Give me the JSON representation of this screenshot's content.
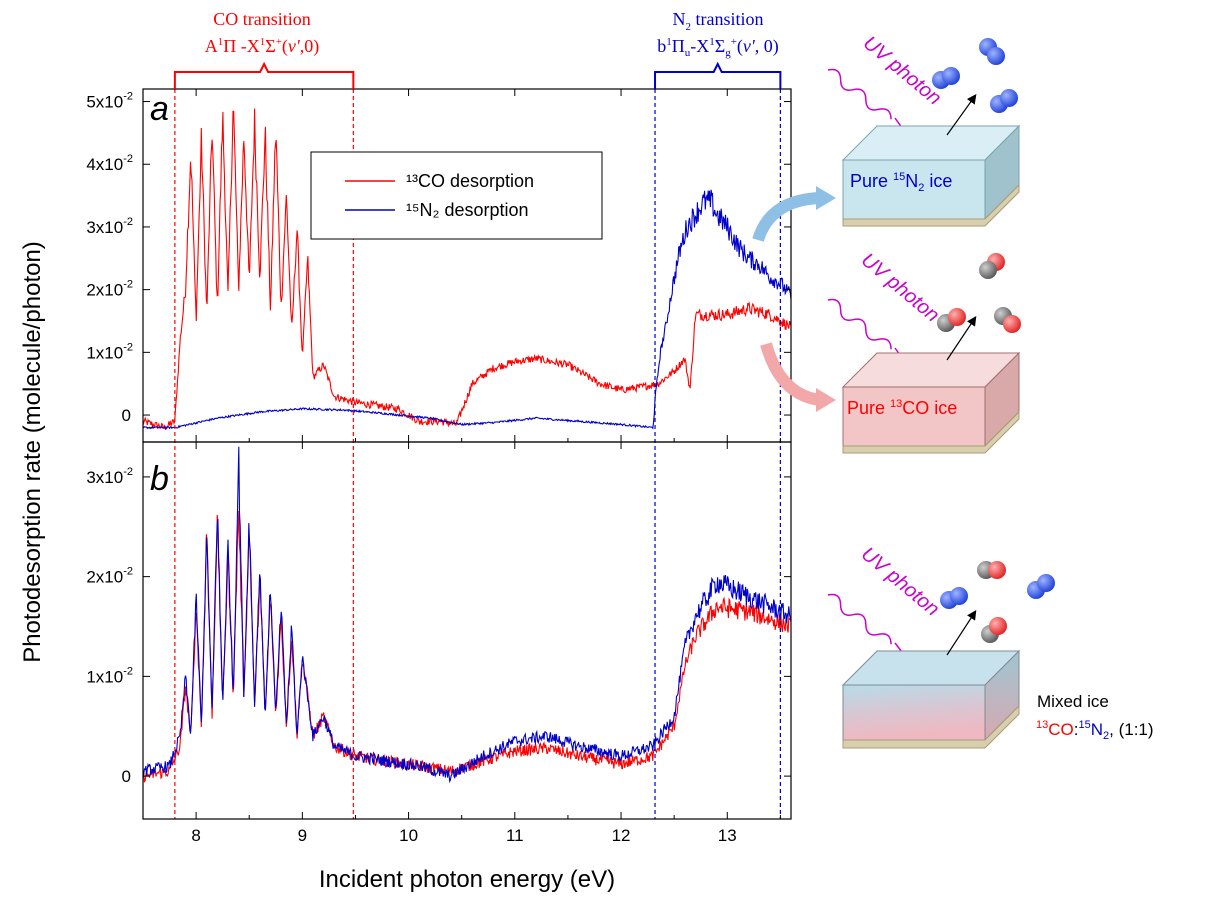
{
  "chart_data": [
    {
      "panel": "a",
      "type": "line",
      "xlabel": "Incident photon energy (eV)",
      "ylabel": "Photodesorption rate (molecule/photon)",
      "xlim": [
        7.5,
        13.6
      ],
      "ylim": [
        -0.0043,
        0.052
      ],
      "x_ticks": [
        "8",
        "9",
        "10",
        "11",
        "12",
        "13"
      ],
      "y_ticks": [
        {
          "value": 0,
          "mant": "0",
          "exp": ""
        },
        {
          "value": 0.01,
          "mant": "1x10",
          "exp": "-2"
        },
        {
          "value": 0.02,
          "mant": "2x10",
          "exp": "-2"
        },
        {
          "value": 0.03,
          "mant": "3x10",
          "exp": "-2"
        },
        {
          "value": 0.04,
          "mant": "4x10",
          "exp": "-2"
        },
        {
          "value": 0.05,
          "mant": "5x10",
          "exp": "-2"
        }
      ],
      "legend": [
        {
          "name": "¹³CO desorption",
          "color": "#ff0000"
        },
        {
          "name": "¹⁵N₂ desorption",
          "color": "#0000cc"
        }
      ],
      "series": [
        {
          "name": "13CO desorption",
          "color": "#ff0000",
          "x": [
            7.5,
            7.7,
            7.8,
            7.85,
            7.9,
            7.95,
            8.0,
            8.05,
            8.1,
            8.15,
            8.2,
            8.25,
            8.3,
            8.35,
            8.4,
            8.45,
            8.5,
            8.55,
            8.6,
            8.65,
            8.7,
            8.75,
            8.8,
            8.85,
            8.9,
            8.95,
            9.0,
            9.05,
            9.1,
            9.2,
            9.3,
            9.5,
            9.7,
            9.9,
            10.1,
            10.3,
            10.45,
            10.6,
            10.8,
            11.0,
            11.2,
            11.5,
            11.8,
            12.0,
            12.2,
            12.35,
            12.5,
            12.6,
            12.65,
            12.7,
            12.8,
            13.0,
            13.2,
            13.4,
            13.6
          ],
          "values": [
            -0.001,
            -0.002,
            -0.001,
            0.012,
            0.02,
            0.042,
            0.015,
            0.044,
            0.016,
            0.046,
            0.017,
            0.048,
            0.019,
            0.05,
            0.02,
            0.045,
            0.021,
            0.047,
            0.022,
            0.045,
            0.017,
            0.046,
            0.017,
            0.035,
            0.013,
            0.03,
            0.009,
            0.025,
            0.006,
            0.008,
            0.003,
            0.002,
            0.0015,
            0.001,
            -0.001,
            -0.001,
            -0.0015,
            0.005,
            0.0075,
            0.0085,
            0.009,
            0.008,
            0.005,
            0.004,
            0.0045,
            0.005,
            0.007,
            0.009,
            0.004,
            0.016,
            0.016,
            0.016,
            0.017,
            0.016,
            0.014
          ]
        },
        {
          "name": "15N2 desorption",
          "color": "#0000cc",
          "x": [
            7.5,
            7.8,
            8.2,
            8.6,
            9.0,
            9.4,
            9.8,
            10.2,
            10.5,
            10.8,
            11.2,
            11.6,
            12.0,
            12.3,
            12.33,
            12.37,
            12.42,
            12.48,
            12.55,
            12.62,
            12.7,
            12.78,
            12.85,
            12.9,
            13.0,
            13.1,
            13.2,
            13.3,
            13.4,
            13.5,
            13.6
          ],
          "values": [
            -0.002,
            -0.002,
            -0.0005,
            0.0005,
            0.001,
            0.0008,
            0.0002,
            -0.0005,
            -0.0015,
            -0.0012,
            -0.0005,
            -0.001,
            -0.0015,
            -0.002,
            0.004,
            0.01,
            0.014,
            0.02,
            0.026,
            0.03,
            0.032,
            0.034,
            0.034,
            0.032,
            0.03,
            0.027,
            0.025,
            0.024,
            0.022,
            0.021,
            0.019
          ]
        }
      ]
    },
    {
      "panel": "b",
      "type": "line",
      "xlabel": "Incident photon energy (eV)",
      "xlim": [
        7.5,
        13.6
      ],
      "ylim": [
        -0.0043,
        0.0335
      ],
      "x_ticks": [
        "8",
        "9",
        "10",
        "11",
        "12",
        "13"
      ],
      "y_ticks": [
        {
          "value": 0,
          "mant": "0",
          "exp": ""
        },
        {
          "value": 0.01,
          "mant": "1x10",
          "exp": "-2"
        },
        {
          "value": 0.02,
          "mant": "2x10",
          "exp": "-2"
        },
        {
          "value": 0.03,
          "mant": "3x10",
          "exp": "-2"
        }
      ],
      "series": [
        {
          "name": "13CO",
          "color": "#ff0000",
          "x": [
            7.5,
            7.75,
            7.85,
            7.9,
            7.95,
            8.0,
            8.05,
            8.1,
            8.15,
            8.2,
            8.25,
            8.3,
            8.35,
            8.4,
            8.45,
            8.5,
            8.55,
            8.6,
            8.65,
            8.7,
            8.75,
            8.8,
            8.85,
            8.9,
            8.95,
            9.0,
            9.1,
            9.2,
            9.3,
            9.5,
            9.8,
            10.1,
            10.4,
            10.7,
            11.0,
            11.3,
            11.6,
            12.0,
            12.3,
            12.5,
            12.6,
            12.7,
            12.9,
            13.2,
            13.6
          ],
          "values": [
            0.0,
            0.0005,
            0.003,
            0.009,
            0.004,
            0.017,
            0.005,
            0.025,
            0.006,
            0.026,
            0.007,
            0.022,
            0.008,
            0.027,
            0.008,
            0.025,
            0.007,
            0.02,
            0.006,
            0.018,
            0.006,
            0.016,
            0.005,
            0.014,
            0.004,
            0.012,
            0.004,
            0.006,
            0.003,
            0.002,
            0.0015,
            0.001,
            0.0005,
            0.0015,
            0.0025,
            0.0028,
            0.002,
            0.0012,
            0.002,
            0.005,
            0.011,
            0.014,
            0.017,
            0.0165,
            0.015
          ]
        },
        {
          "name": "15N2",
          "color": "#0000cc",
          "x": [
            7.5,
            7.75,
            7.85,
            7.9,
            7.95,
            8.0,
            8.05,
            8.1,
            8.15,
            8.2,
            8.25,
            8.3,
            8.35,
            8.4,
            8.45,
            8.5,
            8.55,
            8.6,
            8.65,
            8.7,
            8.75,
            8.8,
            8.85,
            8.9,
            8.95,
            9.0,
            9.1,
            9.2,
            9.3,
            9.5,
            9.8,
            10.1,
            10.4,
            10.7,
            11.0,
            11.3,
            11.6,
            12.0,
            12.3,
            12.5,
            12.6,
            12.7,
            12.9,
            13.2,
            13.6
          ],
          "values": [
            0.0005,
            0.001,
            0.004,
            0.01,
            0.004,
            0.018,
            0.005,
            0.024,
            0.006,
            0.027,
            0.007,
            0.023,
            0.008,
            0.032,
            0.008,
            0.026,
            0.007,
            0.021,
            0.006,
            0.019,
            0.006,
            0.017,
            0.005,
            0.015,
            0.004,
            0.012,
            0.004,
            0.006,
            0.003,
            0.002,
            0.0015,
            0.001,
            0.0,
            0.002,
            0.0035,
            0.004,
            0.003,
            0.002,
            0.003,
            0.006,
            0.013,
            0.016,
            0.0195,
            0.018,
            0.016
          ]
        }
      ]
    }
  ],
  "annotations": {
    "co_bracket": {
      "line1": "CO transition",
      "line2_a": "A",
      "sup1": "1",
      "pi": "Π -X",
      "sup2": "1",
      "sigma": "Σ",
      "sup3": "+",
      "tail": "(",
      "v": "v'",
      "tail2": ",0)",
      "color": "#ff0000",
      "range": [
        7.8,
        9.48
      ]
    },
    "n2_bracket": {
      "line1_a": "N",
      "line1_sub": "2",
      "line1_b": " transition",
      "b": "b",
      "sup1": "1",
      "pi": "Π",
      "sub_u": "u",
      "dash": "-X",
      "sup2": "1",
      "sigma": "Σ",
      "sub_g": "g",
      "sup3": "+",
      "tail": "(",
      "v": "v'",
      "tail2": ", 0)",
      "color": "#0000cc",
      "range": [
        12.32,
        13.5
      ]
    },
    "panel_a_letter": "a",
    "panel_b_letter": "b"
  },
  "illustrations": {
    "uv_label": "UV photon",
    "pure_n2": {
      "pre": "Pure ",
      "sup": "15",
      "main": "N",
      "sub": "2",
      "post": " ice",
      "color": "#0000cc"
    },
    "pure_co": {
      "pre": "Pure ",
      "sup": "13",
      "main": "CO ice",
      "color": "#ff0000"
    },
    "mixed": {
      "line1": "Mixed ice",
      "co_sup": "13",
      "co": "CO",
      "colon": ":",
      "n2_sup": "15",
      "n2": "N",
      "n2_sub": "2",
      "ratio": ", (1:1)"
    },
    "colors": {
      "uv": "#cc00cc",
      "n2_ice": "#c9e6ee",
      "co_ice": "#f2c6c6",
      "substrate": "#d8cfae"
    }
  }
}
